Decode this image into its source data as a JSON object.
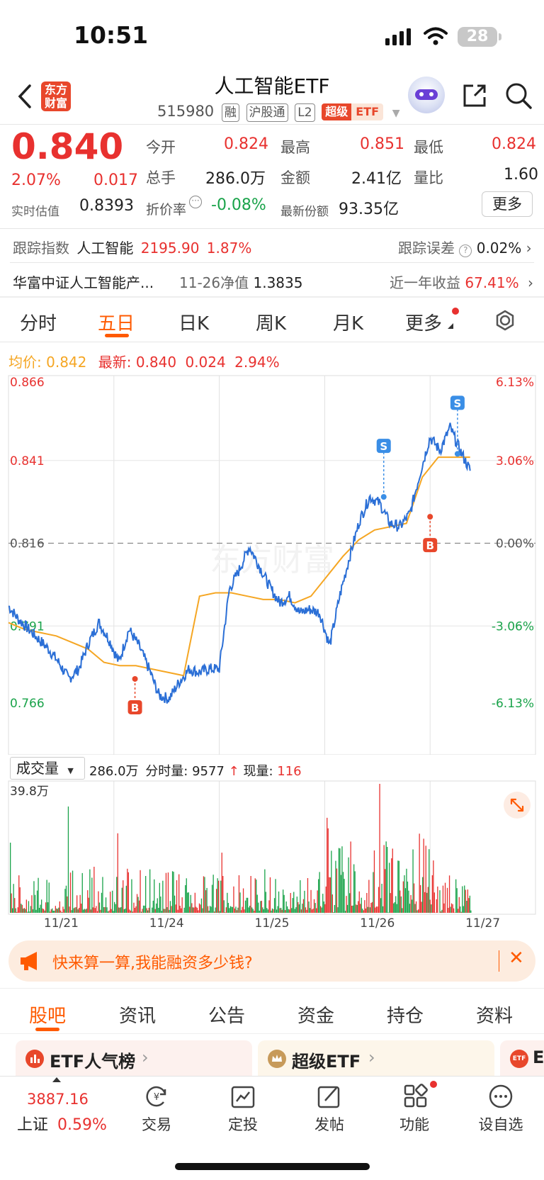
{
  "status": {
    "time": "10:51",
    "battery": "28"
  },
  "header": {
    "title": "人工智能ETF",
    "code": "515980",
    "tags": [
      "融",
      "沪股通",
      "L2"
    ],
    "super_tag": "超级",
    "etf_tag": "ETF",
    "logo_line1": "东方",
    "logo_line2": "财富"
  },
  "quote": {
    "price": "0.840",
    "change_pct": "2.07%",
    "change": "0.017",
    "est_label": "实时估值",
    "est_value": "0.8393",
    "open_label": "今开",
    "open": "0.824",
    "high_label": "最高",
    "high": "0.851",
    "low_label": "最低",
    "low": "0.824",
    "vol_label": "总手",
    "vol": "286.0万",
    "amount_label": "金额",
    "amount": "2.41亿",
    "ratio_label": "量比",
    "ratio": "1.60",
    "discount_label": "折价率",
    "discount": "-0.08%",
    "shares_label": "最新份额",
    "shares": "93.35亿",
    "more_button": "更多"
  },
  "tracking": {
    "index_label": "跟踪指数",
    "index_name": "人工智能",
    "index_value": "2195.90",
    "index_pct": "1.87%",
    "error_label": "跟踪误差",
    "error_value": "0.02%"
  },
  "fund": {
    "name": "华富中证人工智能产...",
    "nav_label": "11-26净值",
    "nav_value": "1.3835",
    "yield_label": "近一年收益",
    "yield_value": "67.41%"
  },
  "kline_tabs": [
    "分时",
    "五日",
    "日K",
    "周K",
    "月K",
    "更多"
  ],
  "active_tab": 1,
  "info_line": {
    "avg_label": "均价:",
    "avg_value": "0.842",
    "latest_label": "最新:",
    "latest_value": "0.840",
    "latest_change": "0.024",
    "latest_pct": "2.94%"
  },
  "volume_bar": {
    "select_label": "成交量",
    "total": "286.0万",
    "tick_label": "分时量:",
    "tick_value": "9577",
    "now_label": "现量:",
    "now_value": "116",
    "max_label": "39.8万"
  },
  "chart_data": {
    "type": "line",
    "days": [
      "11/21",
      "11/24",
      "11/25",
      "11/26",
      "11/27"
    ],
    "y_ticks_left": [
      "0.866",
      "0.841",
      "0.816",
      "0.791",
      "0.766"
    ],
    "y_ticks_right": [
      "6.13%",
      "3.06%",
      "0.00%",
      "-3.06%",
      "-6.13%"
    ],
    "ylim": [
      0.766,
      0.866
    ],
    "prev_close": 0.816,
    "watermark": "东方财富",
    "series": [
      {
        "values": [
          0.797,
          0.793,
          0.79,
          0.787,
          0.784,
          0.78,
          0.775,
          0.778,
          0.786,
          0.792,
          0.787,
          0.78,
          0.79,
          0.785,
          0.778,
          0.77,
          0.769,
          0.774,
          0.778,
          0.777,
          0.778,
          0.778,
          0.802,
          0.808,
          0.815,
          0.809,
          0.803,
          0.798,
          0.8,
          0.795,
          0.796,
          0.795,
          0.785,
          0.8,
          0.812,
          0.823,
          0.83,
          0.828,
          0.822,
          0.821,
          0.825,
          0.837,
          0.848,
          0.844,
          0.851,
          0.844,
          0.838
        ]
      },
      {
        "values": [
          0.792,
          0.79,
          0.789,
          0.788,
          0.786,
          0.784,
          0.78,
          0.779,
          0.779,
          0.778,
          0.777,
          0.776,
          0.8,
          0.801,
          0.801,
          0.8,
          0.799,
          0.799,
          0.798,
          0.8,
          0.806,
          0.812,
          0.817,
          0.82,
          0.821,
          0.822,
          0.836,
          0.842,
          0.842,
          0.842
        ]
      }
    ],
    "markers": [
      {
        "label": "B",
        "day_index": 1,
        "x_frac": 0.2,
        "value": 0.775
      },
      {
        "label": "S",
        "day_index": 3,
        "x_frac": 0.56,
        "value": 0.83
      },
      {
        "label": "B",
        "day_index": 4,
        "x_frac": 0.0,
        "value": 0.824
      },
      {
        "label": "S",
        "day_index": 4,
        "x_frac": 0.26,
        "value": 0.843
      }
    ],
    "volume_max": 39.8
  },
  "banner": {
    "text": "快来算一算,我能融资多少钱?"
  },
  "bottom_tabs": [
    "股吧",
    "资讯",
    "公告",
    "资金",
    "持仓",
    "资料"
  ],
  "bottom_active": 0,
  "cards": [
    {
      "title": "ETF人气榜"
    },
    {
      "title": "超级ETF"
    },
    {
      "title": "E"
    }
  ],
  "nav": {
    "index_value": "3887.16",
    "index_name": "上证",
    "index_pct": "0.59%",
    "items": [
      "交易",
      "定投",
      "发帖",
      "功能",
      "设自选"
    ]
  },
  "colors": {
    "red": "#e8312f",
    "green": "#1aa34a",
    "blue": "#2b6fd6",
    "orange": "#f5a623",
    "accent": "#ff5a00"
  }
}
